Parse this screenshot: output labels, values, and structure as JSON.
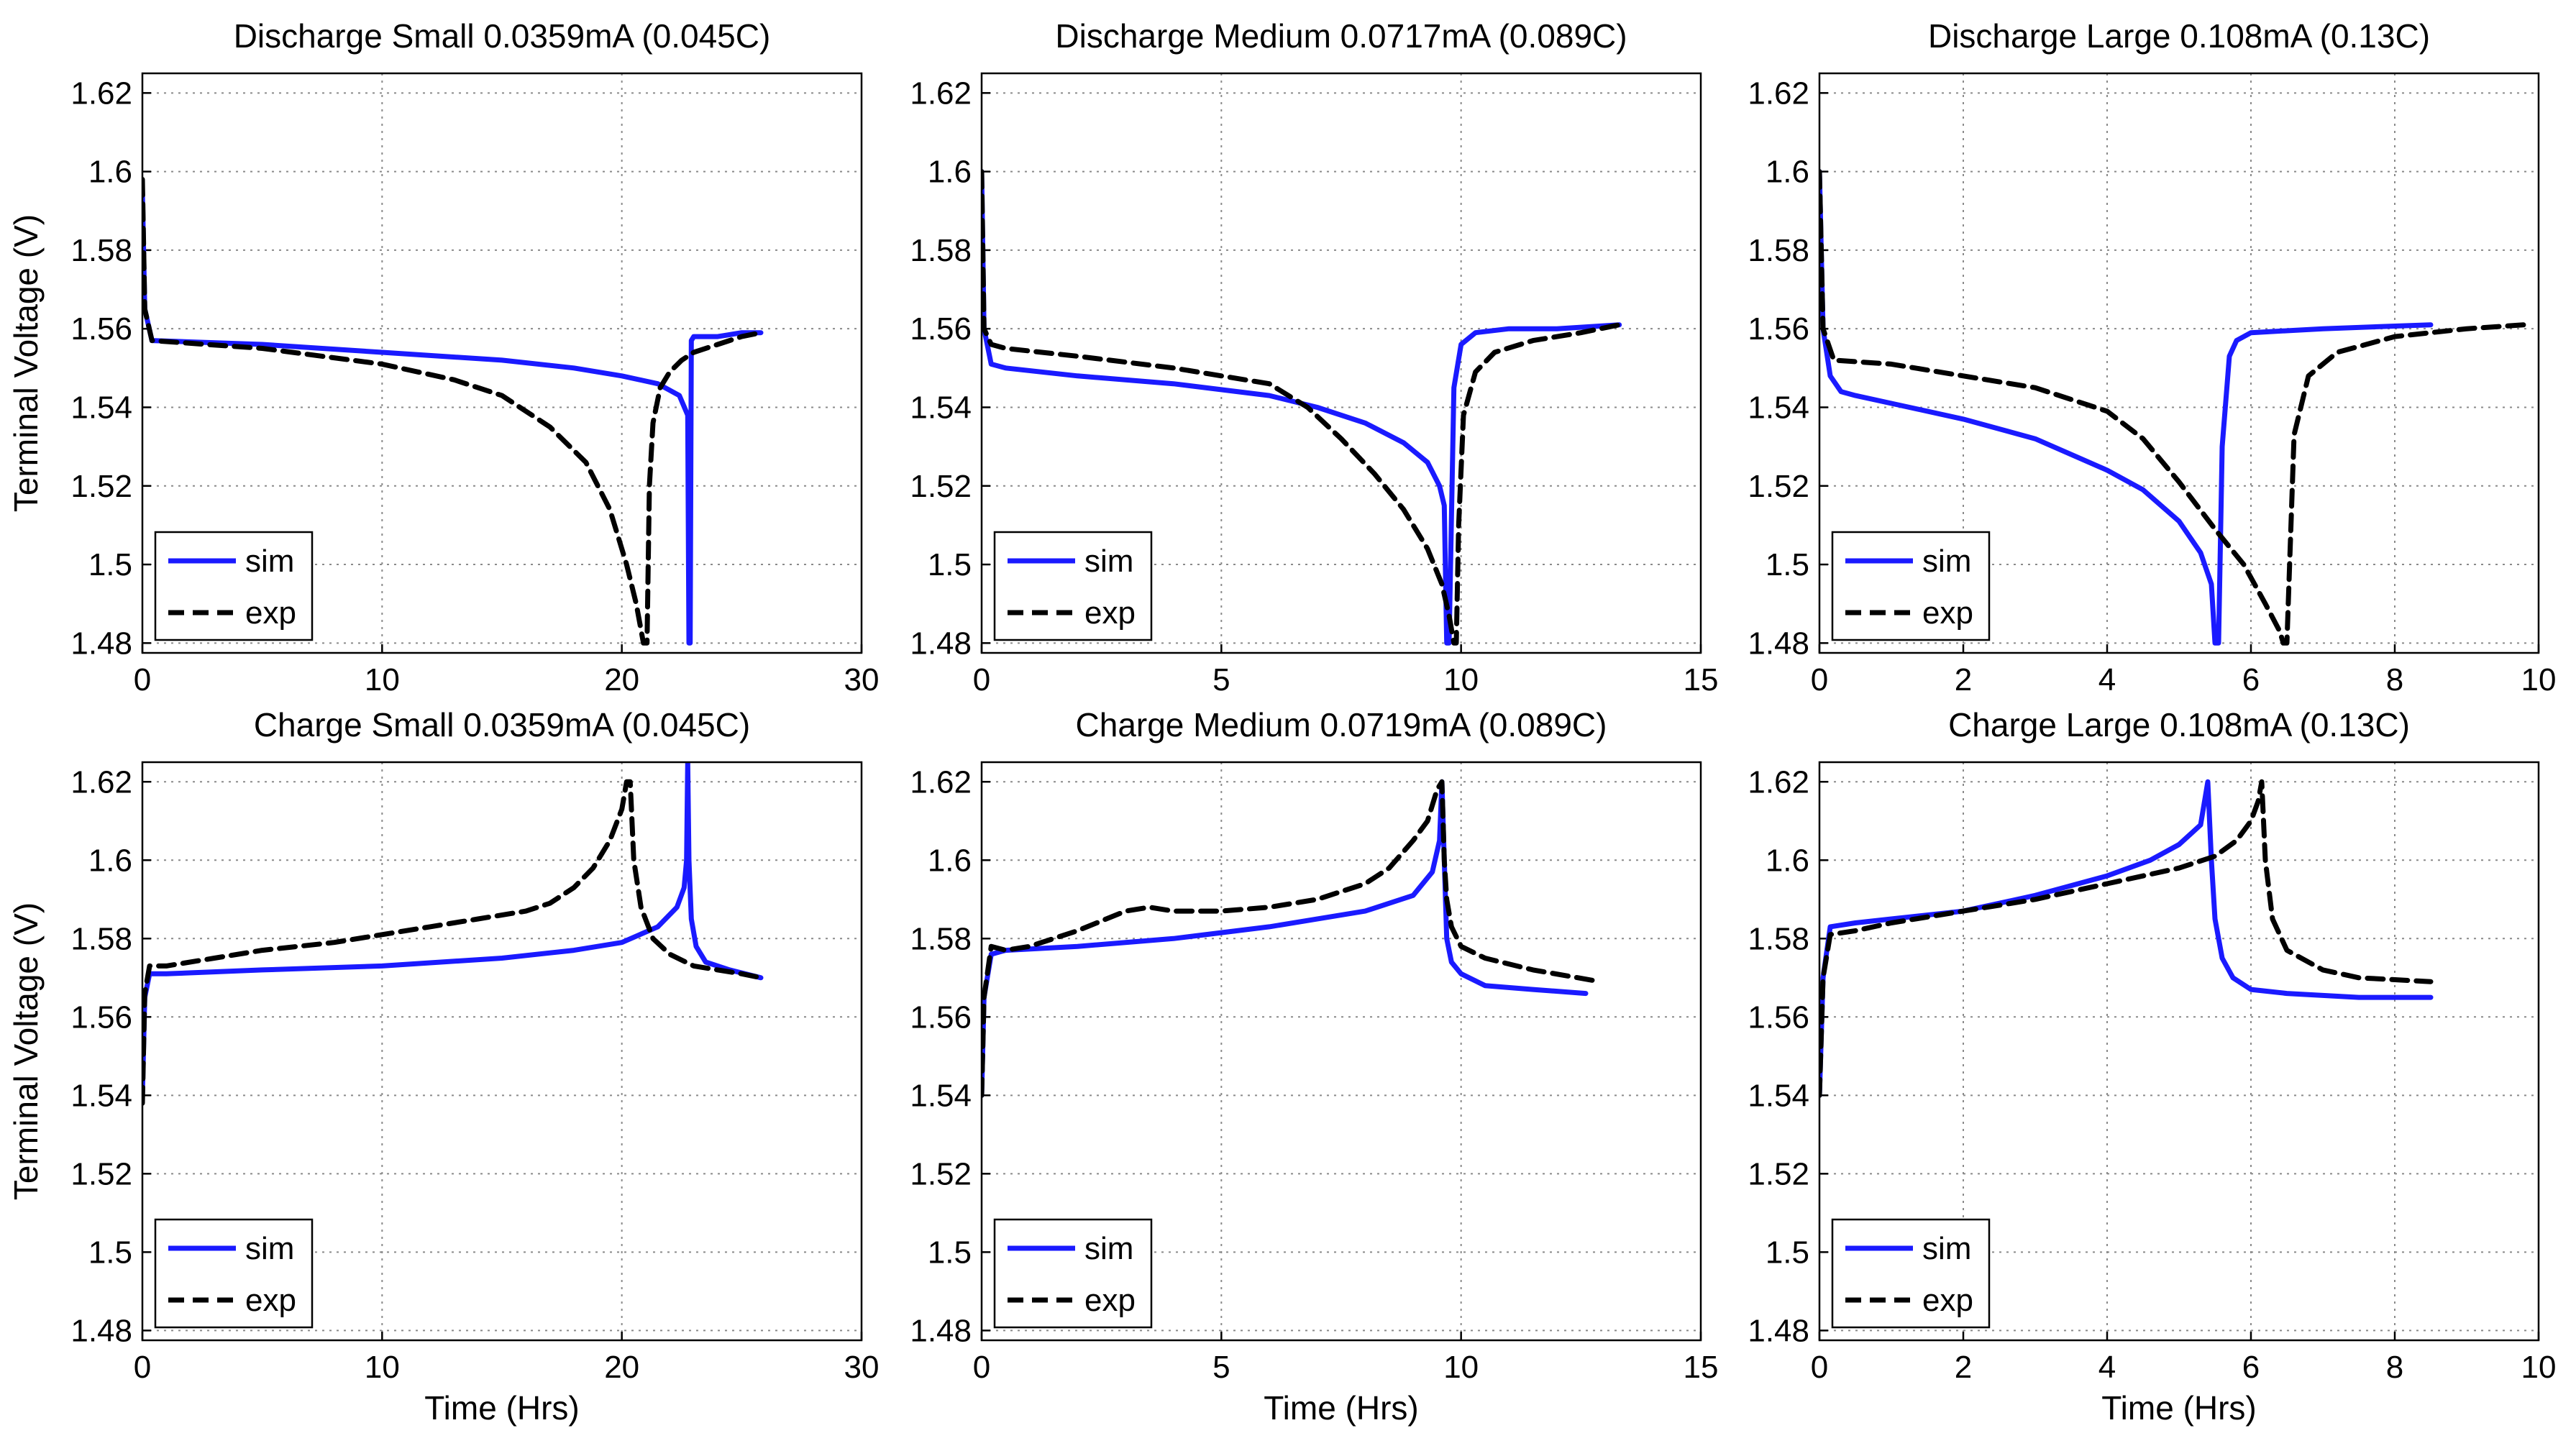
{
  "colors": {
    "sim": "#1a1aff",
    "exp": "#000000",
    "grid": "#8a8a8a",
    "background": "#ffffff"
  },
  "chart_data": [
    {
      "type": "line",
      "title": "Discharge Small 0.0359mA (0.045C)",
      "xlabel": "",
      "ylabel": "Terminal Voltage (V)",
      "xlim": [
        0,
        30
      ],
      "ylim": [
        1.4775,
        1.625
      ],
      "xticks": [
        "0",
        "10",
        "20",
        "30"
      ],
      "yticks": [
        "1.48",
        "1.5",
        "1.52",
        "1.54",
        "1.56",
        "1.58",
        "1.6",
        "1.62"
      ],
      "grid": true,
      "legend": "bottom-left",
      "series": [
        {
          "name": "sim",
          "x": [
            0,
            0.1,
            0.4,
            5,
            10,
            15,
            18,
            20,
            21.5,
            22.4,
            22.75,
            22.8,
            22.85,
            22.9,
            23.0,
            23.5,
            24,
            25,
            25.8
          ],
          "y": [
            1.595,
            1.565,
            1.557,
            1.556,
            1.554,
            1.552,
            1.55,
            1.548,
            1.546,
            1.543,
            1.538,
            1.48,
            1.48,
            1.557,
            1.558,
            1.558,
            1.558,
            1.559,
            1.559
          ]
        },
        {
          "name": "exp",
          "x": [
            0,
            0.1,
            0.4,
            5,
            10,
            13,
            15,
            17,
            18.5,
            19.5,
            20.2,
            20.6,
            20.9,
            21.05,
            21.15,
            21.3,
            21.6,
            22,
            22.5,
            23,
            24,
            25,
            25.8
          ],
          "y": [
            1.598,
            1.565,
            1.557,
            1.555,
            1.551,
            1.547,
            1.543,
            1.535,
            1.526,
            1.514,
            1.5,
            1.49,
            1.48,
            1.48,
            1.52,
            1.536,
            1.545,
            1.549,
            1.552,
            1.554,
            1.556,
            1.558,
            1.559
          ]
        }
      ]
    },
    {
      "type": "line",
      "title": "Discharge Medium 0.0717mA (0.089C)",
      "xlabel": "",
      "ylabel": "",
      "xlim": [
        0,
        15
      ],
      "ylim": [
        1.4775,
        1.625
      ],
      "xticks": [
        "0",
        "5",
        "10",
        "15"
      ],
      "yticks": [
        "1.48",
        "1.5",
        "1.52",
        "1.54",
        "1.56",
        "1.58",
        "1.6",
        "1.62"
      ],
      "grid": true,
      "legend": "bottom-left",
      "series": [
        {
          "name": "sim",
          "x": [
            0,
            0.05,
            0.2,
            0.5,
            2,
            4,
            6,
            7,
            8,
            8.8,
            9.3,
            9.55,
            9.65,
            9.7,
            9.75,
            9.85,
            10,
            10.3,
            11,
            12,
            13.3
          ],
          "y": [
            1.6,
            1.56,
            1.551,
            1.55,
            1.548,
            1.546,
            1.543,
            1.54,
            1.536,
            1.531,
            1.526,
            1.52,
            1.515,
            1.48,
            1.48,
            1.545,
            1.556,
            1.559,
            1.56,
            1.56,
            1.561
          ]
        },
        {
          "name": "exp",
          "x": [
            0,
            0.05,
            0.2,
            0.5,
            2,
            4,
            6,
            6.8,
            7.5,
            8.2,
            8.8,
            9.3,
            9.6,
            9.75,
            9.85,
            9.9,
            9.95,
            10.05,
            10.3,
            10.7,
            11.5,
            12.5,
            13.3
          ],
          "y": [
            1.6,
            1.56,
            1.556,
            1.555,
            1.553,
            1.55,
            1.546,
            1.54,
            1.532,
            1.523,
            1.514,
            1.504,
            1.495,
            1.487,
            1.48,
            1.48,
            1.51,
            1.538,
            1.549,
            1.554,
            1.557,
            1.559,
            1.561
          ]
        }
      ]
    },
    {
      "type": "line",
      "title": "Discharge Large 0.108mA (0.13C)",
      "xlabel": "",
      "ylabel": "",
      "xlim": [
        0,
        10
      ],
      "ylim": [
        1.4775,
        1.625
      ],
      "xticks": [
        "0",
        "2",
        "4",
        "6",
        "8",
        "10"
      ],
      "yticks": [
        "1.48",
        "1.5",
        "1.52",
        "1.54",
        "1.56",
        "1.58",
        "1.6",
        "1.62"
      ],
      "grid": true,
      "legend": "bottom-left",
      "series": [
        {
          "name": "sim",
          "x": [
            0,
            0.05,
            0.15,
            0.3,
            0.5,
            1,
            2,
            3,
            4,
            4.5,
            5,
            5.3,
            5.45,
            5.5,
            5.55,
            5.6,
            5.7,
            5.8,
            6,
            7,
            8.5
          ],
          "y": [
            1.6,
            1.56,
            1.548,
            1.544,
            1.543,
            1.541,
            1.537,
            1.532,
            1.524,
            1.519,
            1.511,
            1.503,
            1.495,
            1.48,
            1.48,
            1.53,
            1.553,
            1.557,
            1.559,
            1.56,
            1.561
          ]
        },
        {
          "name": "exp",
          "x": [
            0,
            0.05,
            0.2,
            1,
            2,
            3,
            3.5,
            4,
            4.5,
            5,
            5.5,
            5.9,
            6.2,
            6.4,
            6.45,
            6.5,
            6.6,
            6.8,
            7.2,
            8,
            9,
            9.8
          ],
          "y": [
            1.6,
            1.56,
            1.552,
            1.551,
            1.548,
            1.545,
            1.542,
            1.539,
            1.532,
            1.521,
            1.509,
            1.5,
            1.49,
            1.483,
            1.48,
            1.48,
            1.533,
            1.548,
            1.554,
            1.558,
            1.56,
            1.561
          ]
        }
      ]
    },
    {
      "type": "line",
      "title": "Charge Small 0.0359mA (0.045C)",
      "xlabel": "Time (Hrs)",
      "ylabel": "Terminal Voltage (V)",
      "xlim": [
        0,
        30
      ],
      "ylim": [
        1.4775,
        1.625
      ],
      "xticks": [
        "0",
        "10",
        "20",
        "30"
      ],
      "yticks": [
        "1.48",
        "1.5",
        "1.52",
        "1.54",
        "1.56",
        "1.58",
        "1.6",
        "1.62"
      ],
      "grid": true,
      "legend": "bottom-left",
      "series": [
        {
          "name": "sim",
          "x": [
            0,
            0.1,
            0.3,
            1,
            5,
            10,
            15,
            18,
            20,
            21.5,
            22.3,
            22.6,
            22.7,
            22.75,
            22.8,
            22.9,
            23.1,
            23.5,
            24.5,
            25.8
          ],
          "y": [
            1.54,
            1.565,
            1.571,
            1.571,
            1.572,
            1.573,
            1.575,
            1.577,
            1.579,
            1.583,
            1.588,
            1.593,
            1.6,
            1.625,
            1.6,
            1.585,
            1.578,
            1.574,
            1.572,
            1.57
          ]
        },
        {
          "name": "exp",
          "x": [
            0,
            0.1,
            0.3,
            1,
            3,
            5,
            8,
            10,
            12,
            14,
            16,
            17,
            18,
            18.8,
            19.5,
            20,
            20.2,
            20.35,
            20.5,
            20.8,
            21.3,
            22,
            23,
            24,
            25,
            25.8
          ],
          "y": [
            1.538,
            1.566,
            1.573,
            1.573,
            1.575,
            1.577,
            1.579,
            1.581,
            1.583,
            1.585,
            1.587,
            1.589,
            1.593,
            1.598,
            1.605,
            1.613,
            1.62,
            1.62,
            1.6,
            1.588,
            1.58,
            1.576,
            1.573,
            1.572,
            1.571,
            1.57
          ]
        }
      ]
    },
    {
      "type": "line",
      "title": "Charge Medium 0.0719mA (0.089C)",
      "xlabel": "Time (Hrs)",
      "ylabel": "",
      "xlim": [
        0,
        15
      ],
      "ylim": [
        1.4775,
        1.625
      ],
      "xticks": [
        "0",
        "5",
        "10",
        "15"
      ],
      "yticks": [
        "1.48",
        "1.5",
        "1.52",
        "1.54",
        "1.56",
        "1.58",
        "1.6",
        "1.62"
      ],
      "grid": true,
      "legend": "bottom-left",
      "series": [
        {
          "name": "sim",
          "x": [
            0,
            0.05,
            0.2,
            0.5,
            2,
            4,
            6,
            8,
            9,
            9.4,
            9.55,
            9.6,
            9.65,
            9.7,
            9.8,
            10,
            10.5,
            11.5,
            12.6
          ],
          "y": [
            1.54,
            1.565,
            1.576,
            1.577,
            1.578,
            1.58,
            1.583,
            1.587,
            1.591,
            1.597,
            1.605,
            1.62,
            1.6,
            1.58,
            1.574,
            1.571,
            1.568,
            1.567,
            1.566
          ]
        },
        {
          "name": "exp",
          "x": [
            0,
            0.05,
            0.2,
            0.5,
            1,
            2,
            3,
            3.5,
            4,
            5,
            6,
            7,
            8,
            8.5,
            9,
            9.3,
            9.5,
            9.6,
            9.65,
            9.7,
            9.8,
            10,
            10.5,
            11.5,
            12.9
          ],
          "y": [
            1.54,
            1.565,
            1.578,
            1.577,
            1.578,
            1.582,
            1.587,
            1.588,
            1.587,
            1.587,
            1.588,
            1.59,
            1.594,
            1.598,
            1.605,
            1.61,
            1.618,
            1.62,
            1.6,
            1.59,
            1.583,
            1.578,
            1.575,
            1.572,
            1.569
          ]
        }
      ]
    },
    {
      "type": "line",
      "title": "Charge Large 0.108mA (0.13C)",
      "xlabel": "Time (Hrs)",
      "ylabel": "",
      "xlim": [
        0,
        10
      ],
      "ylim": [
        1.4775,
        1.625
      ],
      "xticks": [
        "0",
        "2",
        "4",
        "6",
        "8",
        "10"
      ],
      "yticks": [
        "1.48",
        "1.5",
        "1.52",
        "1.54",
        "1.56",
        "1.58",
        "1.6",
        "1.62"
      ],
      "grid": true,
      "legend": "bottom-left",
      "series": [
        {
          "name": "sim",
          "x": [
            0,
            0.05,
            0.15,
            0.5,
            1,
            2,
            3,
            4,
            4.6,
            5,
            5.3,
            5.4,
            5.45,
            5.5,
            5.6,
            5.75,
            6,
            6.5,
            7.5,
            8.5
          ],
          "y": [
            1.54,
            1.57,
            1.583,
            1.584,
            1.585,
            1.587,
            1.591,
            1.596,
            1.6,
            1.604,
            1.609,
            1.62,
            1.6,
            1.585,
            1.575,
            1.57,
            1.567,
            1.566,
            1.565,
            1.565
          ]
        },
        {
          "name": "exp",
          "x": [
            0,
            0.05,
            0.15,
            0.5,
            1,
            2,
            3,
            4,
            5,
            5.5,
            5.8,
            6,
            6.1,
            6.15,
            6.2,
            6.3,
            6.5,
            7,
            7.5,
            8.5
          ],
          "y": [
            1.54,
            1.57,
            1.581,
            1.582,
            1.584,
            1.587,
            1.59,
            1.594,
            1.598,
            1.601,
            1.605,
            1.61,
            1.615,
            1.62,
            1.6,
            1.585,
            1.577,
            1.572,
            1.57,
            1.569
          ]
        }
      ]
    }
  ]
}
